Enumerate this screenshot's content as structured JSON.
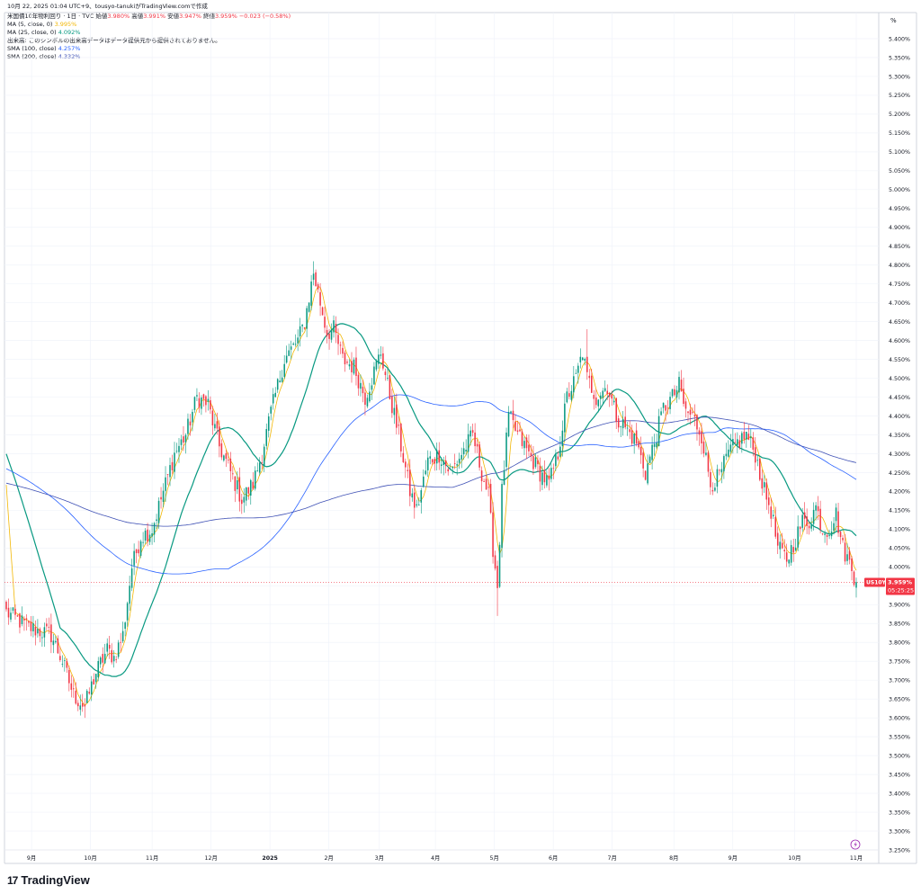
{
  "header": {
    "top_line": "10月 22, 2025 01:04 UTC+9、tousyo-tanukiがTradingView.comで作成",
    "symbol_line": {
      "name": "米国債10年物利回り · 1日 · TVC",
      "open_label": "始値",
      "open_value": "3.980%",
      "high_label": "高値",
      "high_value": "3.991%",
      "low_label": "安値",
      "low_value": "3.947%",
      "close_label": "終値",
      "close_value": "3.959%",
      "change": "−0.023 (−0.58%)"
    },
    "indicators": [
      {
        "label": "MA (5, close, 0)",
        "value": "3.995%",
        "color": "#f2b705"
      },
      {
        "label": "MA (25, close, 0)",
        "value": "4.092%",
        "color": "#089981"
      },
      {
        "label": "出来高: このシンボルの出来高データはデータ提供元から提供されておりません。",
        "value": "",
        "color": "#131722"
      },
      {
        "label": "SMA (100, close)",
        "value": "4.257%",
        "color": "#2962ff"
      },
      {
        "label": "SMA (200, close)",
        "value": "4.332%",
        "color": "#3f51b5"
      }
    ]
  },
  "price_axis": {
    "unit": "%",
    "last_symbol": "US10Y",
    "last_price": "3.959%",
    "countdown": "05:25:25",
    "last_color": "#f23645"
  },
  "brand": {
    "logo_mark": "17",
    "name": "TradingView"
  },
  "chart_data": {
    "type": "candlestick",
    "title": "米国債10年物利回り · 1日 · TVC",
    "ylim": [
      3.25,
      5.45
    ],
    "y_ticks": [
      "5.400%",
      "5.350%",
      "5.300%",
      "5.250%",
      "5.200%",
      "5.150%",
      "5.100%",
      "5.050%",
      "5.000%",
      "4.950%",
      "4.900%",
      "4.850%",
      "4.800%",
      "4.750%",
      "4.700%",
      "4.650%",
      "4.600%",
      "4.550%",
      "4.500%",
      "4.450%",
      "4.400%",
      "4.350%",
      "4.300%",
      "4.250%",
      "4.200%",
      "4.150%",
      "4.100%",
      "4.050%",
      "4.000%",
      "3.950%",
      "3.900%",
      "3.850%",
      "3.800%",
      "3.750%",
      "3.700%",
      "3.650%",
      "3.600%",
      "3.550%",
      "3.500%",
      "3.450%",
      "3.400%",
      "3.350%",
      "3.300%",
      "3.250%"
    ],
    "x_ticks": [
      {
        "label": "9月",
        "bold": false
      },
      {
        "label": "10月",
        "bold": false
      },
      {
        "label": "11月",
        "bold": false
      },
      {
        "label": "12月",
        "bold": false
      },
      {
        "label": "2025",
        "bold": true
      },
      {
        "label": "2月",
        "bold": false
      },
      {
        "label": "3月",
        "bold": false
      },
      {
        "label": "4月",
        "bold": false
      },
      {
        "label": "5月",
        "bold": false
      },
      {
        "label": "6月",
        "bold": false
      },
      {
        "label": "7月",
        "bold": false
      },
      {
        "label": "8月",
        "bold": false
      },
      {
        "label": "9月",
        "bold": false
      },
      {
        "label": "10月",
        "bold": false
      },
      {
        "label": "11月",
        "bold": false
      }
    ],
    "up_color": "#089981",
    "down_color": "#f23645",
    "anchors": [
      [
        0,
        3.88
      ],
      [
        10,
        3.84
      ],
      [
        20,
        3.82
      ],
      [
        25,
        3.75
      ],
      [
        30,
        3.66
      ],
      [
        35,
        3.63
      ],
      [
        40,
        3.72
      ],
      [
        45,
        3.78
      ],
      [
        48,
        3.76
      ],
      [
        52,
        3.82
      ],
      [
        56,
        4.0
      ],
      [
        60,
        4.08
      ],
      [
        65,
        4.1
      ],
      [
        70,
        4.2
      ],
      [
        75,
        4.3
      ],
      [
        80,
        4.35
      ],
      [
        85,
        4.45
      ],
      [
        90,
        4.43
      ],
      [
        95,
        4.32
      ],
      [
        100,
        4.25
      ],
      [
        105,
        4.18
      ],
      [
        110,
        4.22
      ],
      [
        114,
        4.3
      ],
      [
        118,
        4.41
      ],
      [
        124,
        4.55
      ],
      [
        130,
        4.6
      ],
      [
        133,
        4.65
      ],
      [
        137,
        4.78
      ],
      [
        140,
        4.7
      ],
      [
        143,
        4.62
      ],
      [
        146,
        4.63
      ],
      [
        150,
        4.55
      ],
      [
        155,
        4.53
      ],
      [
        160,
        4.45
      ],
      [
        163,
        4.5
      ],
      [
        167,
        4.57
      ],
      [
        170,
        4.48
      ],
      [
        175,
        4.35
      ],
      [
        180,
        4.2
      ],
      [
        183,
        4.15
      ],
      [
        188,
        4.28
      ],
      [
        193,
        4.3
      ],
      [
        198,
        4.25
      ],
      [
        203,
        4.3
      ],
      [
        208,
        4.35
      ],
      [
        212,
        4.25
      ],
      [
        215,
        4.19
      ],
      [
        217,
        4.05
      ],
      [
        219,
        3.95
      ],
      [
        221,
        4.2
      ],
      [
        224,
        4.4
      ],
      [
        228,
        4.35
      ],
      [
        233,
        4.3
      ],
      [
        238,
        4.25
      ],
      [
        242,
        4.22
      ],
      [
        246,
        4.3
      ],
      [
        250,
        4.45
      ],
      [
        254,
        4.5
      ],
      [
        257,
        4.57
      ],
      [
        259,
        4.5
      ],
      [
        263,
        4.45
      ],
      [
        268,
        4.48
      ],
      [
        272,
        4.4
      ],
      [
        276,
        4.37
      ],
      [
        281,
        4.33
      ],
      [
        285,
        4.25
      ],
      [
        289,
        4.33
      ],
      [
        293,
        4.42
      ],
      [
        297,
        4.45
      ],
      [
        300,
        4.48
      ],
      [
        303,
        4.41
      ],
      [
        306,
        4.4
      ],
      [
        310,
        4.35
      ],
      [
        314,
        4.22
      ],
      [
        318,
        4.24
      ],
      [
        322,
        4.3
      ],
      [
        326,
        4.33
      ],
      [
        330,
        4.35
      ],
      [
        334,
        4.3
      ],
      [
        338,
        4.2
      ],
      [
        341,
        4.15
      ],
      [
        344,
        4.05
      ],
      [
        348,
        4.02
      ],
      [
        351,
        4.06
      ],
      [
        355,
        4.12
      ],
      [
        358,
        4.12
      ],
      [
        361,
        4.16
      ],
      [
        364,
        4.1
      ],
      [
        367,
        4.1
      ],
      [
        370,
        4.14
      ],
      [
        373,
        4.05
      ],
      [
        376,
        4.01
      ],
      [
        379,
        3.96
      ]
    ],
    "extremes": [
      {
        "i": 35,
        "low": 3.6
      },
      {
        "i": 137,
        "high": 4.81
      },
      {
        "i": 219,
        "low": 3.87
      },
      {
        "i": 259,
        "high": 4.63
      }
    ],
    "series": [
      {
        "name": "MA (5, close, 0)",
        "color": "#f2b705",
        "period": 5,
        "last": 3.995
      },
      {
        "name": "MA (25, close, 0)",
        "color": "#089981",
        "period": 25,
        "last": 4.092
      },
      {
        "name": "SMA (100, close)",
        "color": "#2962ff",
        "period": 100,
        "last": 4.257
      },
      {
        "name": "SMA (200, close)",
        "color": "#3f51b5",
        "period": 200,
        "last": 4.332
      }
    ]
  }
}
